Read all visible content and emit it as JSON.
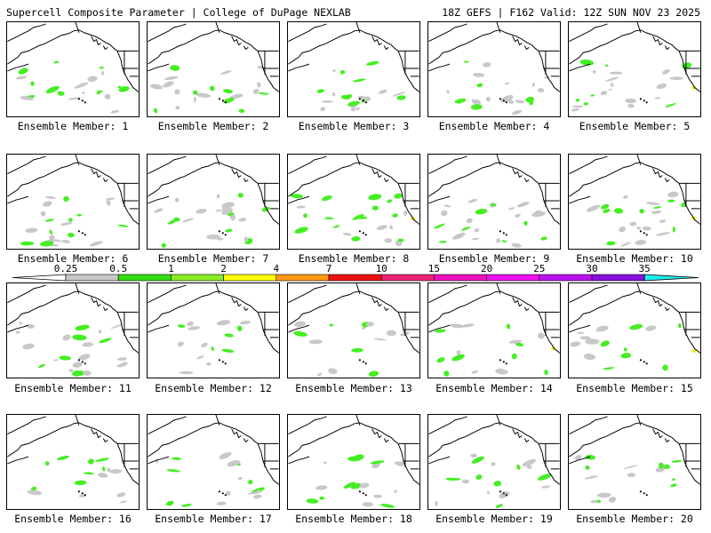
{
  "header": {
    "left": "Supercell Composite Parameter | College of DuPage NEXLAB",
    "right": "18Z GEFS | F162 Valid: 12Z SUN NOV 23 2025"
  },
  "colors": {
    "gray": "#c8c8c8",
    "green": "#44ee22",
    "yellow": "#f0f000",
    "orange": "#ff8000",
    "red": "#e00000",
    "cyan": "#00eeee"
  },
  "colorbar": {
    "ticks": [
      "0.25",
      "0.5",
      "1",
      "2",
      "4",
      "7",
      "10",
      "15",
      "20",
      "25",
      "30",
      "35"
    ],
    "colors": [
      "#c8c8c8",
      "#33dd11",
      "#88ee22",
      "#ffff00",
      "#ff9911",
      "#ee1111",
      "#ee2277",
      "#ee11bb",
      "#ee11ee",
      "#bb11ee",
      "#8811dd",
      "#aa66dd"
    ],
    "tail_colors": [
      "#ffffff",
      "#22eeee"
    ]
  },
  "members": [
    {
      "label": "Ensemble Member: 1"
    },
    {
      "label": "Ensemble Member: 2"
    },
    {
      "label": "Ensemble Member: 3"
    },
    {
      "label": "Ensemble Member: 4"
    },
    {
      "label": "Ensemble Member: 5"
    },
    {
      "label": "Ensemble Member: 6"
    },
    {
      "label": "Ensemble Member: 7"
    },
    {
      "label": "Ensemble Member: 8"
    },
    {
      "label": "Ensemble Member: 9"
    },
    {
      "label": "Ensemble Member: 10"
    },
    {
      "label": "Ensemble Member: 11"
    },
    {
      "label": "Ensemble Member: 12"
    },
    {
      "label": "Ensemble Member: 13"
    },
    {
      "label": "Ensemble Member: 14"
    },
    {
      "label": "Ensemble Member: 15"
    },
    {
      "label": "Ensemble Member: 16"
    },
    {
      "label": "Ensemble Member: 17"
    },
    {
      "label": "Ensemble Member: 18"
    },
    {
      "label": "Ensemble Member: 19"
    },
    {
      "label": "Ensemble Member: 20"
    }
  ]
}
